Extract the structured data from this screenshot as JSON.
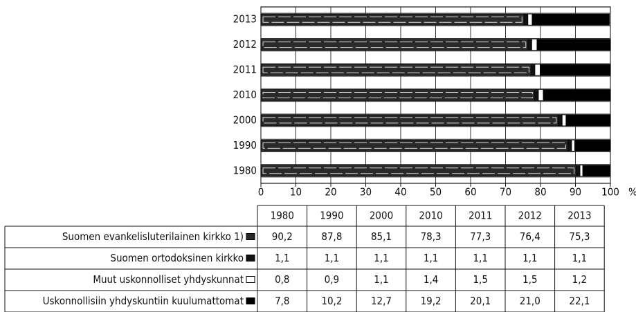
{
  "chart_data": {
    "type": "bar",
    "orientation": "horizontal",
    "stacked": true,
    "categories": [
      "1980",
      "1990",
      "2000",
      "2010",
      "2011",
      "2012",
      "2013"
    ],
    "xlim": [
      0,
      100
    ],
    "xticks": [
      0,
      10,
      20,
      30,
      40,
      50,
      60,
      70,
      80,
      90,
      100
    ],
    "xlabel": "%",
    "grid": true,
    "series": [
      {
        "name": "Suomen evankelisluterilainen kirkko 1)",
        "color": "#2a2a2a",
        "values": [
          90.2,
          87.8,
          85.1,
          78.3,
          77.3,
          76.4,
          75.3
        ],
        "value_labels": [
          "90,2",
          "87,8",
          "85,1",
          "78,3",
          "77,3",
          "76,4",
          "75,3"
        ]
      },
      {
        "name": "Suomen ortodoksinen kirkko",
        "color": "#111111",
        "values": [
          1.1,
          1.1,
          1.1,
          1.1,
          1.1,
          1.1,
          1.1
        ],
        "value_labels": [
          "1,1",
          "1,1",
          "1,1",
          "1,1",
          "1,1",
          "1,1",
          "1,1"
        ]
      },
      {
        "name": "Muut uskonnolliset yhdyskunnat",
        "color": "#ffffff",
        "values": [
          0.8,
          0.9,
          1.1,
          1.4,
          1.5,
          1.5,
          1.2
        ],
        "value_labels": [
          "0,8",
          "0,9",
          "1,1",
          "1,4",
          "1,5",
          "1,5",
          "1,2"
        ]
      },
      {
        "name": "Uskonnollisiin yhdyskuntiin kuulumattomat",
        "color": "#000000",
        "values": [
          7.8,
          10.2,
          12.7,
          19.2,
          20.1,
          21.0,
          22.1
        ],
        "value_labels": [
          "7,8",
          "10,2",
          "12,7",
          "19,2",
          "20,1",
          "21,0",
          "22,1"
        ]
      }
    ]
  }
}
